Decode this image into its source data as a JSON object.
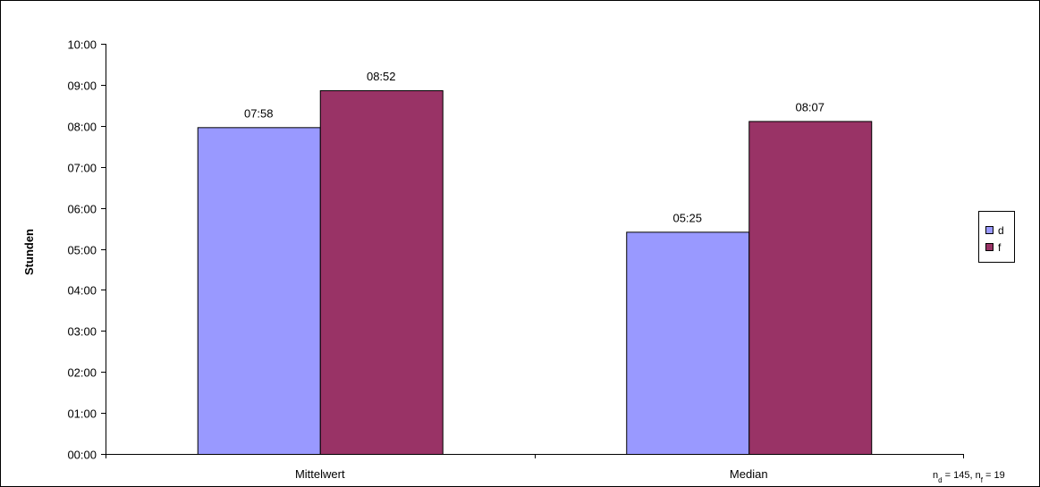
{
  "chart_data": {
    "type": "bar",
    "categories": [
      "Mittelwert",
      "Median"
    ],
    "series": [
      {
        "name": "d",
        "values_minutes": [
          478,
          325
        ],
        "labels": [
          "07:58",
          "05:25"
        ],
        "color": "#9999ff"
      },
      {
        "name": "f",
        "values_minutes": [
          532,
          487
        ],
        "labels": [
          "08:52",
          "08:07"
        ],
        "color": "#993366"
      }
    ],
    "title": "",
    "xlabel": "",
    "ylabel": "Stunden",
    "ylim_minutes": [
      0,
      600
    ],
    "yticks": [
      "00:00",
      "01:00",
      "02:00",
      "03:00",
      "04:00",
      "05:00",
      "06:00",
      "07:00",
      "08:00",
      "09:00",
      "10:00"
    ],
    "grid": false,
    "legend_position": "right"
  },
  "note": {
    "n": "n",
    "sub_d": "d",
    "eq_d": " = 145, ",
    "sub_f": "f",
    "eq_f": " = 19"
  }
}
